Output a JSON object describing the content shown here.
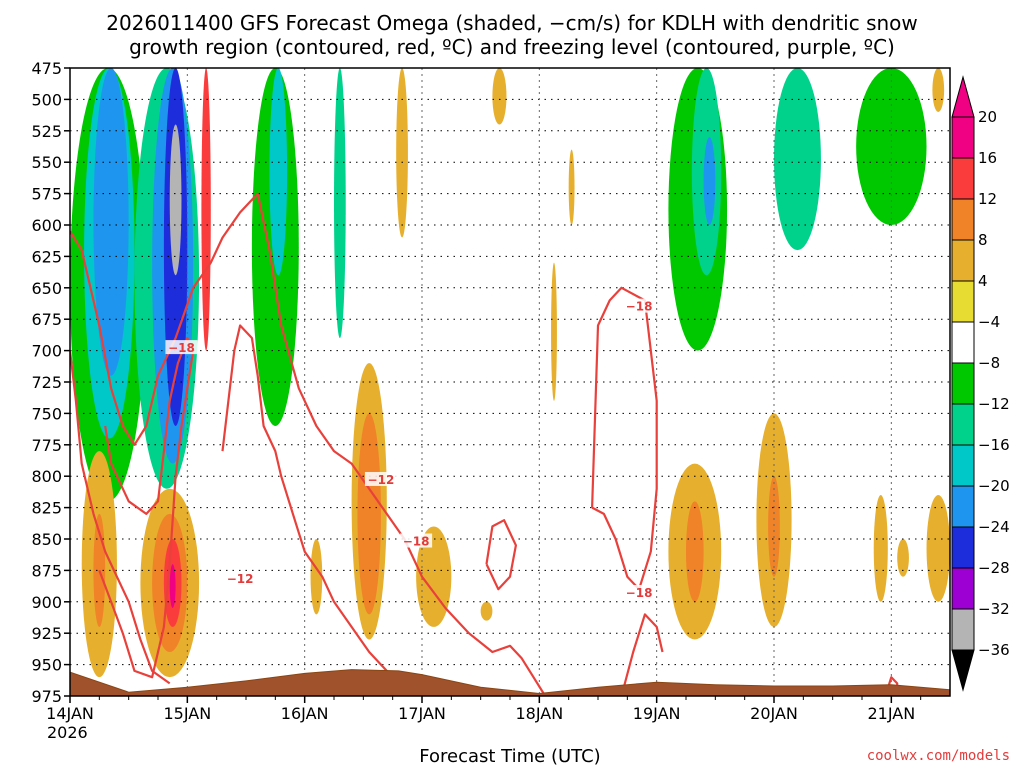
{
  "chart_data": {
    "type": "heatmap",
    "title": "2026011400 GFS Forecast Omega (shaded, −cm/s) for KDLH with dendritic snow",
    "subtitle": "growth region (contoured, red, ºC) and freezing level (contoured, purple, ºC)",
    "xlabel": "Forecast Time (UTC)",
    "ylabel": "",
    "credit": "coolwx.com/models",
    "x_ticks": [
      "14JAN",
      "15JAN",
      "16JAN",
      "17JAN",
      "18JAN",
      "19JAN",
      "20JAN",
      "21JAN"
    ],
    "x_year": "2026",
    "xlim": [
      0,
      7.5
    ],
    "y_ticks": [
      475,
      500,
      525,
      550,
      575,
      600,
      625,
      650,
      675,
      700,
      725,
      750,
      775,
      800,
      825,
      850,
      875,
      900,
      925,
      950,
      975
    ],
    "ylim": [
      975,
      475
    ],
    "colorbar": {
      "levels": [
        -36,
        -32,
        -28,
        -24,
        -20,
        -16,
        -12,
        -8,
        -4,
        4,
        8,
        12,
        16,
        20
      ],
      "colors": [
        "#b4b4b4",
        "#9c00d2",
        "#1e2ddc",
        "#1e96f0",
        "#00c8c8",
        "#00d28c",
        "#00c800",
        "#ffffff",
        "#e6dc32",
        "#e6af2d",
        "#f08228",
        "#fa3c3c",
        "#f00082"
      ],
      "under_color": "#000000",
      "over_color": "#f00082"
    },
    "omega_regions": [
      {
        "x0": 0.0,
        "x1": 0.65,
        "p0": 475,
        "p1": 820,
        "value": -10
      },
      {
        "x0": 0.12,
        "x1": 0.55,
        "p0": 475,
        "p1": 770,
        "value": -18
      },
      {
        "x0": 0.2,
        "x1": 0.5,
        "p0": 475,
        "p1": 720,
        "value": -22
      },
      {
        "x0": 0.55,
        "x1": 1.1,
        "p0": 475,
        "p1": 810,
        "value": -14
      },
      {
        "x0": 0.7,
        "x1": 1.05,
        "p0": 475,
        "p1": 790,
        "value": -22
      },
      {
        "x0": 0.8,
        "x1": 1.0,
        "p0": 475,
        "p1": 760,
        "value": -28
      },
      {
        "x0": 0.85,
        "x1": 0.95,
        "p0": 520,
        "p1": 640,
        "value": -34
      },
      {
        "x0": 1.12,
        "x1": 1.2,
        "p0": 475,
        "p1": 700,
        "value": 14
      },
      {
        "x0": 1.25,
        "x1": 2.0,
        "p0": 475,
        "p1": 890,
        "value": -8
      },
      {
        "x0": 1.55,
        "x1": 1.95,
        "p0": 475,
        "p1": 760,
        "value": -12
      },
      {
        "x0": 1.7,
        "x1": 1.85,
        "p0": 475,
        "p1": 640,
        "value": -18
      },
      {
        "x0": 2.0,
        "x1": 2.4,
        "p0": 475,
        "p1": 740,
        "value": -8
      },
      {
        "x0": 2.25,
        "x1": 2.35,
        "p0": 475,
        "p1": 690,
        "value": -14
      },
      {
        "x0": 2.4,
        "x1": 2.85,
        "p0": 475,
        "p1": 700,
        "value": -6
      },
      {
        "x0": 2.78,
        "x1": 2.88,
        "p0": 475,
        "p1": 610,
        "value": 6
      },
      {
        "x0": 3.6,
        "x1": 3.72,
        "p0": 475,
        "p1": 520,
        "value": 5
      },
      {
        "x0": 4.65,
        "x1": 4.75,
        "p0": 475,
        "p1": 530,
        "value": -5
      },
      {
        "x0": 4.25,
        "x1": 4.3,
        "p0": 540,
        "p1": 600,
        "value": 5
      },
      {
        "x0": 4.1,
        "x1": 4.15,
        "p0": 630,
        "p1": 740,
        "value": 5
      },
      {
        "x0": 4.9,
        "x1": 5.7,
        "p0": 475,
        "p1": 730,
        "value": -8
      },
      {
        "x0": 5.1,
        "x1": 5.6,
        "p0": 475,
        "p1": 700,
        "value": -12
      },
      {
        "x0": 5.3,
        "x1": 5.55,
        "p0": 475,
        "p1": 640,
        "value": -16
      },
      {
        "x0": 5.4,
        "x1": 5.5,
        "p0": 530,
        "p1": 600,
        "value": -22
      },
      {
        "x0": 5.7,
        "x1": 6.5,
        "p0": 475,
        "p1": 650,
        "value": -8
      },
      {
        "x0": 6.0,
        "x1": 6.4,
        "p0": 475,
        "p1": 620,
        "value": -14
      },
      {
        "x0": 6.5,
        "x1": 7.5,
        "p0": 475,
        "p1": 700,
        "value": -7
      },
      {
        "x0": 6.7,
        "x1": 7.3,
        "p0": 475,
        "p1": 600,
        "value": -11
      },
      {
        "x0": 7.35,
        "x1": 7.45,
        "p0": 475,
        "p1": 510,
        "value": 5
      },
      {
        "x0": 0.1,
        "x1": 0.4,
        "p0": 780,
        "p1": 960,
        "value": 6
      },
      {
        "x0": 0.2,
        "x1": 0.3,
        "p0": 830,
        "p1": 920,
        "value": 10
      },
      {
        "x0": 0.6,
        "x1": 1.1,
        "p0": 810,
        "p1": 960,
        "value": 6
      },
      {
        "x0": 0.7,
        "x1": 1.0,
        "p0": 830,
        "p1": 940,
        "value": 10
      },
      {
        "x0": 0.8,
        "x1": 0.95,
        "p0": 850,
        "p1": 920,
        "value": 14
      },
      {
        "x0": 0.85,
        "x1": 0.9,
        "p0": 870,
        "p1": 905,
        "value": 19
      },
      {
        "x0": 2.4,
        "x1": 2.7,
        "p0": 710,
        "p1": 930,
        "value": 6
      },
      {
        "x0": 2.45,
        "x1": 2.65,
        "p0": 750,
        "p1": 910,
        "value": 10
      },
      {
        "x0": 2.05,
        "x1": 2.15,
        "p0": 850,
        "p1": 910,
        "value": 5
      },
      {
        "x0": 2.95,
        "x1": 3.25,
        "p0": 840,
        "p1": 920,
        "value": 5
      },
      {
        "x0": 3.5,
        "x1": 3.6,
        "p0": 900,
        "p1": 915,
        "value": 5
      },
      {
        "x0": 5.1,
        "x1": 5.55,
        "p0": 790,
        "p1": 930,
        "value": 6
      },
      {
        "x0": 5.25,
        "x1": 5.4,
        "p0": 820,
        "p1": 900,
        "value": 10
      },
      {
        "x0": 5.85,
        "x1": 6.15,
        "p0": 750,
        "p1": 920,
        "value": 6
      },
      {
        "x0": 5.95,
        "x1": 6.05,
        "p0": 800,
        "p1": 880,
        "value": 10
      },
      {
        "x0": 6.85,
        "x1": 6.97,
        "p0": 815,
        "p1": 900,
        "value": 5
      },
      {
        "x0": 7.05,
        "x1": 7.15,
        "p0": 850,
        "p1": 880,
        "value": 5
      },
      {
        "x0": 7.3,
        "x1": 7.5,
        "p0": 815,
        "p1": 900,
        "value": 5
      }
    ],
    "contours": [
      {
        "level": -12,
        "points": [
          [
            0.0,
            605
          ],
          [
            0.1,
            620
          ],
          [
            0.25,
            680
          ],
          [
            0.35,
            730
          ],
          [
            0.45,
            760
          ],
          [
            0.55,
            775
          ],
          [
            0.65,
            760
          ],
          [
            0.75,
            720
          ],
          [
            0.9,
            690
          ],
          [
            1.05,
            650
          ],
          [
            1.2,
            630
          ],
          [
            1.3,
            610
          ],
          [
            1.45,
            590
          ],
          [
            1.6,
            575
          ],
          [
            1.7,
            620
          ],
          [
            1.8,
            680
          ],
          [
            1.95,
            730
          ],
          [
            2.1,
            760
          ],
          [
            2.25,
            780
          ],
          [
            2.4,
            790
          ],
          [
            2.55,
            810
          ],
          [
            2.7,
            830
          ],
          [
            2.85,
            850
          ],
          [
            3.0,
            880
          ],
          [
            3.2,
            905
          ],
          [
            3.4,
            925
          ],
          [
            3.6,
            940
          ],
          [
            3.75,
            935
          ],
          [
            3.85,
            945
          ],
          [
            3.95,
            960
          ],
          [
            4.05,
            975
          ]
        ]
      },
      {
        "level": -18,
        "points": [
          [
            0.0,
            700
          ],
          [
            0.05,
            740
          ],
          [
            0.1,
            790
          ],
          [
            0.2,
            830
          ],
          [
            0.3,
            860
          ],
          [
            0.4,
            880
          ],
          [
            0.5,
            900
          ],
          [
            0.6,
            930
          ],
          [
            0.7,
            955
          ],
          [
            0.85,
            965
          ]
        ]
      },
      {
        "level": -18,
        "points": [
          [
            0.25,
            875
          ],
          [
            0.35,
            900
          ],
          [
            0.45,
            925
          ],
          [
            0.55,
            955
          ],
          [
            0.7,
            960
          ],
          [
            0.8,
            920
          ],
          [
            0.85,
            870
          ],
          [
            0.9,
            800
          ],
          [
            0.95,
            760
          ],
          [
            1.0,
            730
          ],
          [
            1.05,
            700
          ],
          [
            1.0,
            690
          ],
          [
            0.92,
            710
          ],
          [
            0.85,
            740
          ],
          [
            0.8,
            780
          ],
          [
            0.75,
            820
          ],
          [
            0.65,
            830
          ],
          [
            0.5,
            820
          ],
          [
            0.35,
            790
          ],
          [
            0.3,
            760
          ]
        ]
      },
      {
        "level": -18,
        "points": [
          [
            1.3,
            780
          ],
          [
            1.35,
            740
          ],
          [
            1.4,
            700
          ],
          [
            1.45,
            680
          ],
          [
            1.55,
            690
          ],
          [
            1.6,
            720
          ],
          [
            1.65,
            760
          ],
          [
            1.75,
            780
          ],
          [
            1.8,
            800
          ],
          [
            1.9,
            830
          ],
          [
            2.0,
            860
          ],
          [
            2.15,
            880
          ],
          [
            2.25,
            900
          ],
          [
            2.4,
            920
          ],
          [
            2.55,
            940
          ],
          [
            2.7,
            955
          ],
          [
            2.8,
            965
          ]
        ]
      },
      {
        "level": -18,
        "points": [
          [
            3.55,
            870
          ],
          [
            3.6,
            840
          ],
          [
            3.7,
            835
          ],
          [
            3.8,
            855
          ],
          [
            3.75,
            880
          ],
          [
            3.65,
            890
          ],
          [
            3.55,
            870
          ]
        ]
      },
      {
        "level": -18,
        "points": [
          [
            4.45,
            825
          ],
          [
            4.5,
            680
          ],
          [
            4.6,
            660
          ],
          [
            4.7,
            650
          ],
          [
            4.9,
            660
          ],
          [
            5.0,
            740
          ],
          [
            5.0,
            810
          ],
          [
            4.95,
            860
          ],
          [
            4.85,
            890
          ],
          [
            4.75,
            880
          ],
          [
            4.65,
            850
          ],
          [
            4.55,
            830
          ],
          [
            4.45,
            825
          ]
        ]
      },
      {
        "level": -18,
        "points": [
          [
            4.7,
            975
          ],
          [
            4.8,
            940
          ],
          [
            4.9,
            910
          ],
          [
            5.0,
            920
          ],
          [
            5.05,
            940
          ]
        ]
      },
      {
        "level": -18,
        "points": [
          [
            6.95,
            975
          ],
          [
            7.0,
            960
          ],
          [
            7.05,
            965
          ],
          [
            7.05,
            975
          ]
        ]
      }
    ],
    "contour_labels": [
      {
        "text": "−18",
        "x": 0.95,
        "p": 698
      },
      {
        "text": "−12",
        "x": 1.45,
        "p": 882
      },
      {
        "text": "−12",
        "x": 2.65,
        "p": 803
      },
      {
        "text": "−18",
        "x": 2.95,
        "p": 852
      },
      {
        "text": "−18",
        "x": 4.85,
        "p": 665
      },
      {
        "text": "−18",
        "x": 4.85,
        "p": 893
      }
    ],
    "terrain": [
      [
        0.0,
        956
      ],
      [
        0.5,
        972
      ],
      [
        1.0,
        968
      ],
      [
        1.5,
        963
      ],
      [
        2.0,
        957
      ],
      [
        2.4,
        954
      ],
      [
        2.8,
        955
      ],
      [
        3.0,
        958
      ],
      [
        3.5,
        968
      ],
      [
        4.0,
        973
      ],
      [
        4.5,
        968
      ],
      [
        5.0,
        964
      ],
      [
        5.5,
        966
      ],
      [
        6.0,
        967
      ],
      [
        6.5,
        967
      ],
      [
        7.0,
        966
      ],
      [
        7.5,
        970
      ]
    ]
  }
}
